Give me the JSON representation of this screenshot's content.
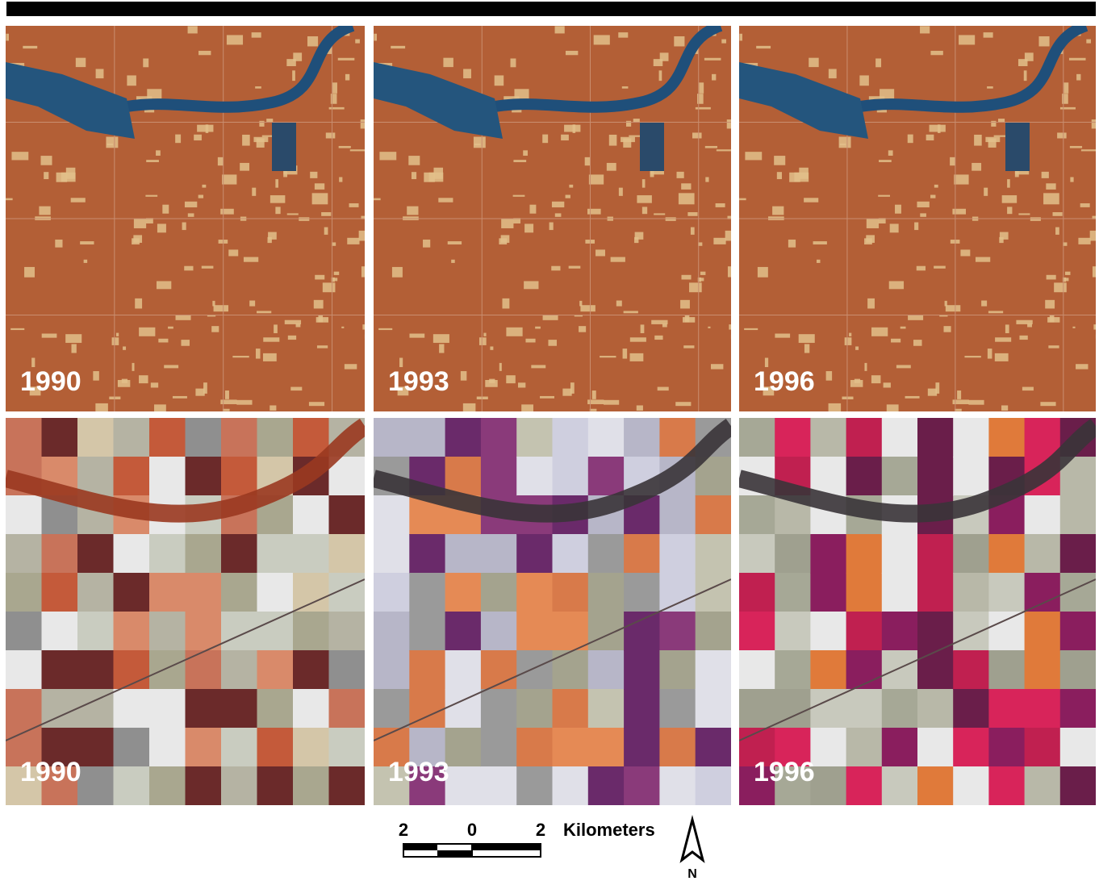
{
  "rows": [
    {
      "panels": [
        {
          "label": "1990"
        },
        {
          "label": "1993"
        },
        {
          "label": "1996"
        }
      ]
    },
    {
      "panels": [
        {
          "label": "1990"
        },
        {
          "label": "1993"
        },
        {
          "label": "1996"
        }
      ]
    }
  ],
  "scale": {
    "ticks": [
      "2",
      "0",
      "2"
    ],
    "unit": "Kilometers"
  },
  "north": "N"
}
